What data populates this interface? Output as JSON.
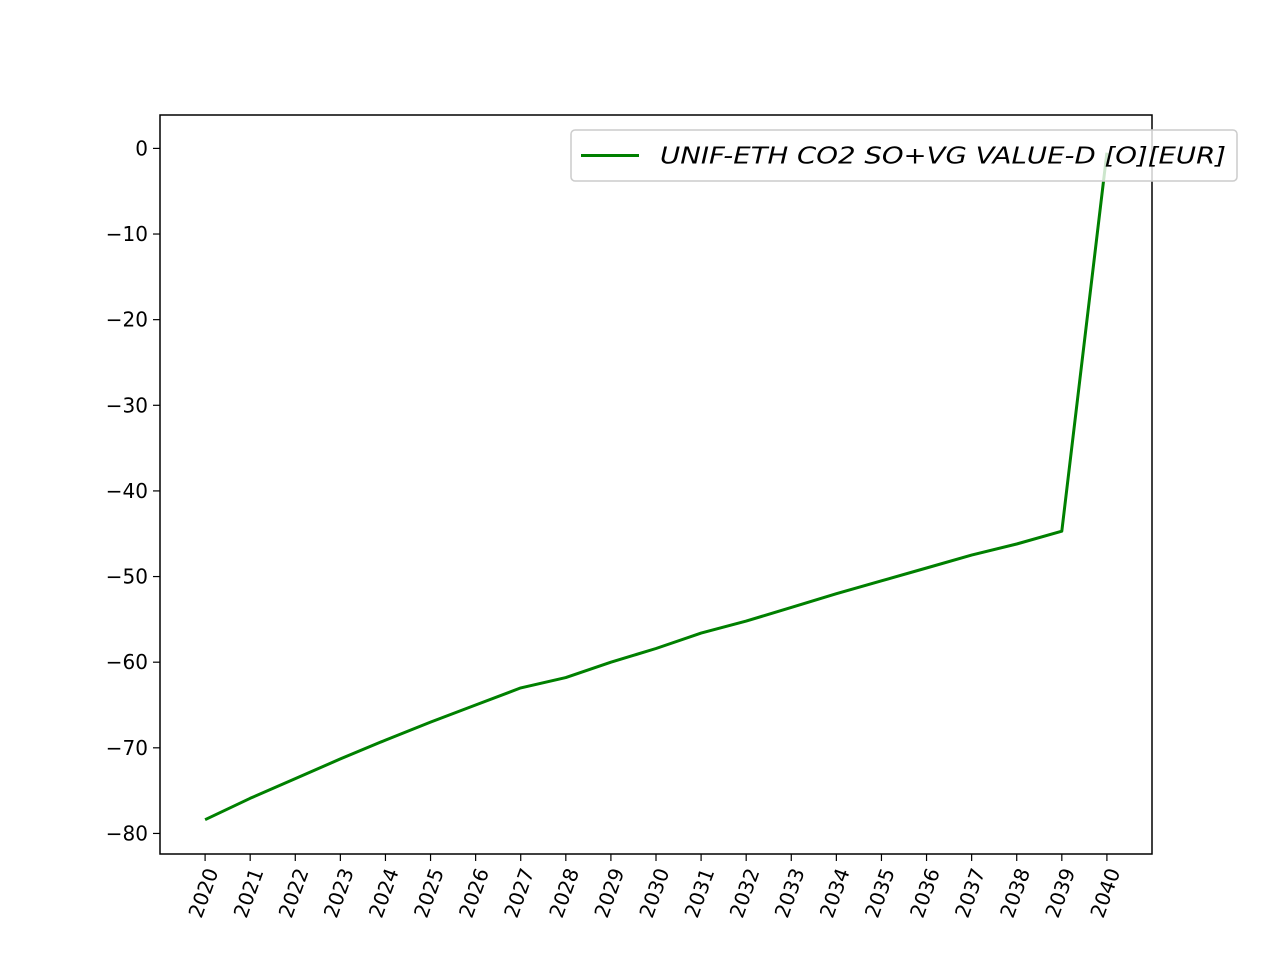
{
  "chart_data": {
    "type": "line",
    "title": "",
    "xlabel": "",
    "ylabel": "",
    "x": [
      2020,
      2021,
      2022,
      2023,
      2024,
      2025,
      2026,
      2027,
      2028,
      2029,
      2030,
      2031,
      2032,
      2033,
      2034,
      2035,
      2036,
      2037,
      2038,
      2039,
      2040
    ],
    "x_tick_labels": [
      "2020",
      "2021",
      "2022",
      "2023",
      "2024",
      "2025",
      "2026",
      "2027",
      "2028",
      "2029",
      "2030",
      "2031",
      "2032",
      "2033",
      "2034",
      "2035",
      "2036",
      "2037",
      "2038",
      "2039",
      "2040"
    ],
    "xlim": [
      2019,
      2041
    ],
    "ylim": [
      -82.4,
      3.9
    ],
    "y_ticks": [
      0,
      -10,
      -20,
      -30,
      -40,
      -50,
      -60,
      -70,
      -80
    ],
    "y_tick_labels": [
      "0",
      "−10",
      "−20",
      "−30",
      "−40",
      "−50",
      "−60",
      "−70",
      "−80"
    ],
    "series": [
      {
        "name": "UNIF-ETH CO2 SO+VG VALUE-D [O][EUR]",
        "color": "#008000",
        "values": [
          -78.4,
          -75.9,
          -73.6,
          -71.3,
          -69.1,
          -67.0,
          -65.0,
          -63.0,
          -61.8,
          -60.0,
          -58.4,
          -56.6,
          -55.2,
          -53.6,
          -52.0,
          -50.5,
          -49.0,
          -47.5,
          -46.2,
          -44.7,
          -0.5
        ]
      }
    ],
    "legend": {
      "position": "top-right"
    },
    "grid": false
  }
}
